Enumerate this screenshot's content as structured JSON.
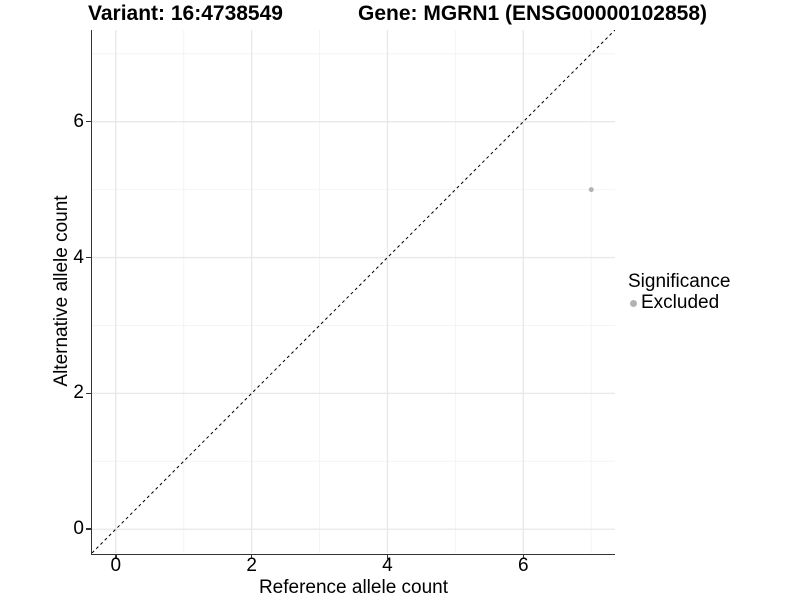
{
  "titles": {
    "variant": "Variant: 16:4738549",
    "gene": "Gene: MGRN1 (ENSG00000102858)"
  },
  "axes": {
    "x": {
      "label": "Reference allele count",
      "tick_labels": [
        "0",
        "2",
        "4",
        "6"
      ]
    },
    "y": {
      "label": "Alternative allele count",
      "tick_labels": [
        "0",
        "2",
        "4",
        "6"
      ]
    }
  },
  "legend": {
    "title": "Significance",
    "items": [
      {
        "label": "Excluded",
        "color": "#b3b3b3",
        "marker": "circle-icon"
      }
    ]
  },
  "colors": {
    "background": "#ffffff",
    "text": "#000000",
    "axis_line": "#333333",
    "grid_major": "#e8e8e8",
    "grid_minor": "#f4f4f4",
    "identity_line": "#000000",
    "point": "#b3b3b3"
  },
  "chart_data": {
    "type": "scatter",
    "title": "Variant: 16:4738549 | Gene: MGRN1 (ENSG00000102858)",
    "xlabel": "Reference allele count",
    "ylabel": "Alternative allele count",
    "xlim": [
      -0.35,
      7.35
    ],
    "ylim": [
      -0.35,
      7.35
    ],
    "x_ticks": [
      0,
      2,
      4,
      6
    ],
    "y_ticks": [
      0,
      2,
      4,
      6
    ],
    "x_minor_ticks": [
      1,
      3,
      5,
      7
    ],
    "y_minor_ticks": [
      1,
      3,
      5,
      7
    ],
    "grid": "major+minor",
    "legend_position": "right",
    "legend_title": "Significance",
    "series": [
      {
        "name": "Excluded",
        "color": "#b3b3b3",
        "points": [
          {
            "x": 7,
            "y": 5
          }
        ]
      }
    ],
    "reference_line": {
      "type": "identity y=x",
      "style": "dashed",
      "color": "#000000"
    }
  }
}
